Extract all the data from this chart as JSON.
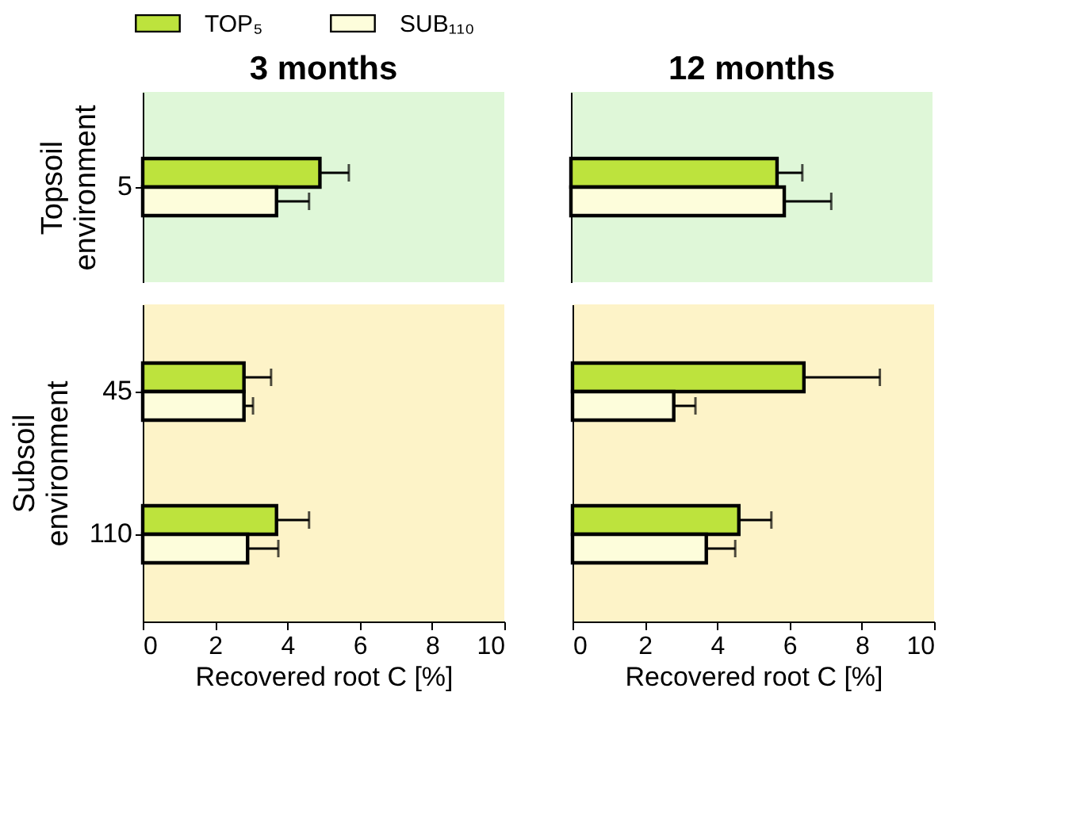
{
  "chart_data": [
    {
      "type": "bar",
      "orientation": "horizontal",
      "title": "3 months",
      "ylabel": "Topsoil environment",
      "categories": [
        "5"
      ],
      "xlim": [
        0,
        10
      ],
      "xticks": [
        0,
        2,
        4,
        6,
        8,
        10
      ],
      "tick_labels": "y",
      "legend": "top",
      "series": [
        {
          "name": "TOP₅",
          "color": "#bde33d",
          "values": [
            4.9
          ],
          "errors": [
            0.8
          ]
        },
        {
          "name": "SUB₁₁₀",
          "color": "#fdfddb",
          "values": [
            3.7
          ],
          "errors": [
            0.9
          ]
        }
      ]
    },
    {
      "type": "bar",
      "orientation": "horizontal",
      "title": "12 months",
      "categories": [
        "5"
      ],
      "xlim": [
        0,
        10
      ],
      "xticks": [
        0,
        2,
        4,
        6,
        8,
        10
      ],
      "tick_labels": false,
      "series": [
        {
          "color": "#bde33d",
          "values": [
            5.7
          ],
          "errors": [
            0.7
          ]
        },
        {
          "color": "#fdfddb",
          "values": [
            5.9
          ],
          "errors": [
            1.3
          ]
        }
      ]
    },
    {
      "type": "bar",
      "orientation": "horizontal",
      "ylabel": "Subsoil environment",
      "xlabel": "Recovered root C [%]",
      "categories": [
        "45",
        "110"
      ],
      "xlim": [
        0,
        10
      ],
      "xticks": [
        0,
        2,
        4,
        6,
        8,
        10
      ],
      "series": [
        {
          "color": "#bde33d",
          "values": [
            2.8,
            3.7
          ],
          "errors": [
            0.75,
            0.9
          ]
        },
        {
          "color": "#fdfddb",
          "values": [
            2.8,
            2.9
          ],
          "errors": [
            0.25,
            0.85
          ]
        }
      ]
    },
    {
      "type": "bar",
      "orientation": "horizontal",
      "xlabel": "Recovered root C [%]",
      "categories": [
        "45",
        "110"
      ],
      "xlim": [
        0,
        10
      ],
      "xticks": [
        0,
        2,
        4,
        6,
        8,
        10
      ],
      "tick_labels": "x",
      "series": [
        {
          "color": "#bde33d",
          "values": [
            6.4,
            4.6
          ],
          "errors": [
            2.1,
            0.9
          ]
        },
        {
          "color": "#fdfddb",
          "values": [
            2.8,
            3.7
          ],
          "errors": [
            0.6,
            0.8
          ]
        }
      ]
    }
  ]
}
